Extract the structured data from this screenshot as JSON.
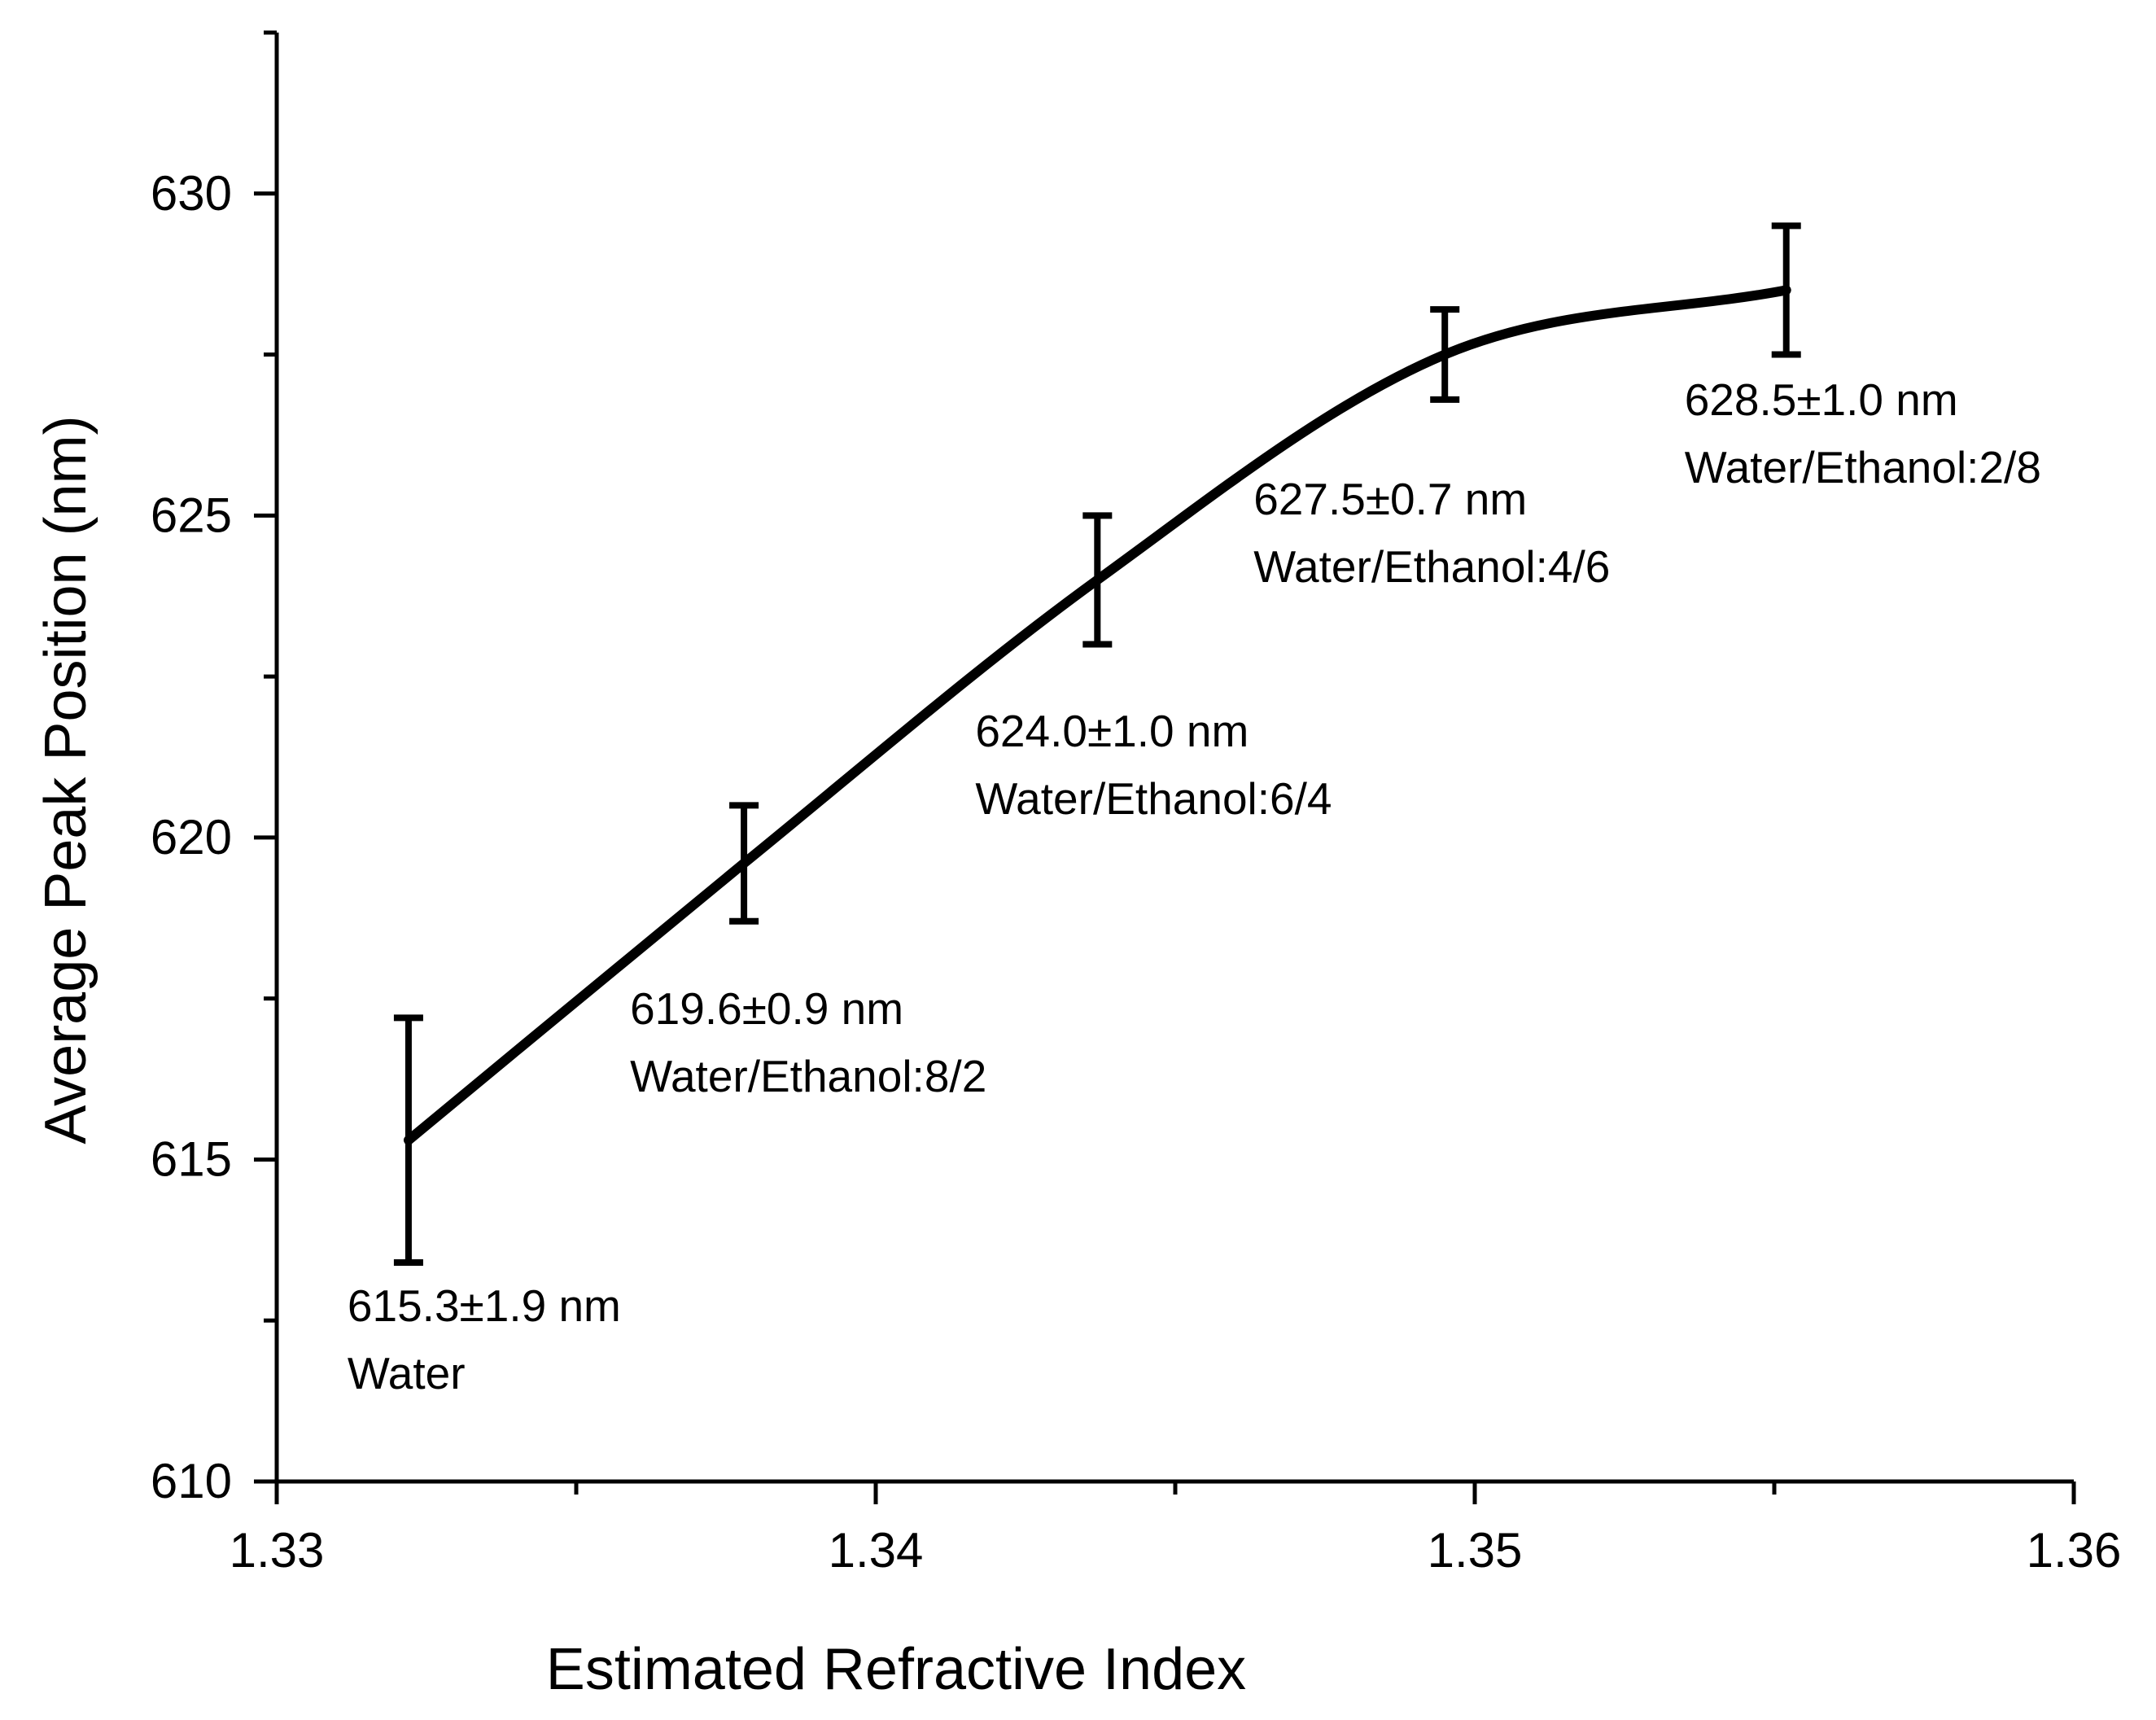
{
  "chart_data": {
    "type": "line",
    "title": "",
    "xlabel": "Estimated Refractive Index",
    "ylabel": "Average Peak Position (nm)",
    "xlim": [
      1.33,
      1.36
    ],
    "ylim": [
      610,
      632.5
    ],
    "x_ticks": [
      {
        "value": 1.33,
        "label": "1.33"
      },
      {
        "value": 1.34,
        "label": "1.34"
      },
      {
        "value": 1.35,
        "label": "1.35"
      },
      {
        "value": 1.36,
        "label": "1.36"
      }
    ],
    "x_minor_ticks": [
      1.335,
      1.345,
      1.355
    ],
    "y_ticks": [
      {
        "value": 610,
        "label": "610"
      },
      {
        "value": 615,
        "label": "615"
      },
      {
        "value": 620,
        "label": "620"
      },
      {
        "value": 625,
        "label": "625"
      },
      {
        "value": 630,
        "label": "630"
      }
    ],
    "y_minor_ticks": [
      612.5,
      617.5,
      622.5,
      627.5,
      632.5
    ],
    "series": [
      {
        "name": "Average Peak Position",
        "color": "#000000",
        "points": [
          {
            "x": 1.3322,
            "y": 615.3,
            "err": 1.9,
            "value_label": "615.3±1.9 nm",
            "medium_label": "Water"
          },
          {
            "x": 1.3378,
            "y": 619.6,
            "err": 0.9,
            "value_label": "619.6±0.9 nm",
            "medium_label": "Water/Ethanol:8/2"
          },
          {
            "x": 1.3437,
            "y": 624.0,
            "err": 1.0,
            "value_label": "624.0±1.0 nm",
            "medium_label": "Water/Ethanol:6/4"
          },
          {
            "x": 1.3495,
            "y": 627.5,
            "err": 0.7,
            "value_label": "627.5±0.7 nm",
            "medium_label": "Water/Ethanol:4/6"
          },
          {
            "x": 1.3552,
            "y": 628.5,
            "err": 1.0,
            "value_label": "628.5±1.0 nm",
            "medium_label": "Water/Ethanol:2/8"
          }
        ]
      }
    ]
  }
}
